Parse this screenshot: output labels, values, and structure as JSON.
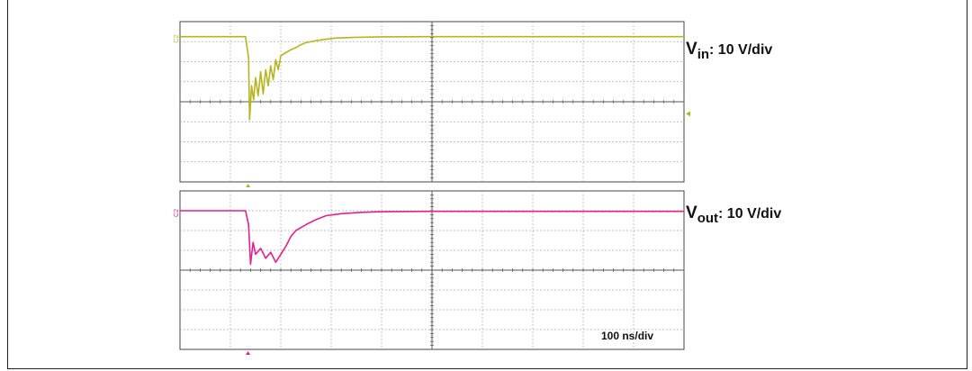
{
  "chart_data": [
    {
      "type": "line",
      "title": "",
      "label": {
        "main": "V",
        "sub": "in",
        "scale": ": 10 V/div"
      },
      "channel_marker": "C2",
      "color": "#b5b521",
      "divisions": {
        "x": 10,
        "y": 8
      },
      "xlim": [
        0,
        10
      ],
      "ylim": [
        -4,
        4
      ],
      "x_unit_per_div": "100 ns",
      "y_unit_per_div": "10 V",
      "trigger_x": 1.35,
      "series": [
        {
          "x": [
            0,
            1.3,
            1.36,
            1.38,
            1.42,
            1.46,
            1.5,
            1.55,
            1.6,
            1.65,
            1.7,
            1.75,
            1.8,
            1.85,
            1.9,
            1.95,
            2.0,
            2.1,
            2.2,
            2.3,
            2.4,
            2.5,
            2.7,
            2.9,
            3.1,
            3.5,
            4.0,
            5.0,
            6.0,
            7.0,
            8.0,
            9.0,
            10.0
          ],
          "y": [
            3.25,
            3.25,
            2.2,
            -0.9,
            0.8,
            0.1,
            1.2,
            0.3,
            1.5,
            0.4,
            1.6,
            0.8,
            1.8,
            1.1,
            2.1,
            1.6,
            2.3,
            2.45,
            2.6,
            2.7,
            2.85,
            2.95,
            3.05,
            3.12,
            3.18,
            3.22,
            3.24,
            3.25,
            3.25,
            3.25,
            3.25,
            3.25,
            3.25
          ]
        }
      ]
    },
    {
      "type": "line",
      "title": "",
      "label": {
        "main": "V",
        "sub": "out",
        "scale": ": 10 V/div"
      },
      "channel_marker": "C2",
      "color": "#e0238a",
      "divisions": {
        "x": 10,
        "y": 8
      },
      "xlim": [
        0,
        10
      ],
      "ylim": [
        -4,
        4
      ],
      "x_unit_per_div": "100 ns",
      "y_unit_per_div": "10 V",
      "trigger_x": 1.35,
      "series": [
        {
          "x": [
            0,
            1.3,
            1.36,
            1.4,
            1.45,
            1.5,
            1.6,
            1.7,
            1.8,
            1.9,
            2.0,
            2.1,
            2.2,
            2.3,
            2.5,
            2.7,
            2.9,
            3.2,
            3.6,
            4.0,
            5.0,
            6.0,
            7.0,
            8.0,
            9.0,
            10.0
          ],
          "y": [
            3.0,
            3.0,
            2.3,
            0.3,
            1.4,
            0.8,
            1.1,
            0.6,
            0.9,
            0.4,
            0.8,
            1.2,
            1.7,
            2.0,
            2.3,
            2.55,
            2.75,
            2.85,
            2.92,
            2.95,
            2.97,
            2.97,
            2.97,
            2.97,
            2.97,
            2.97
          ]
        }
      ]
    }
  ],
  "timebase_label": "100 ns/div"
}
